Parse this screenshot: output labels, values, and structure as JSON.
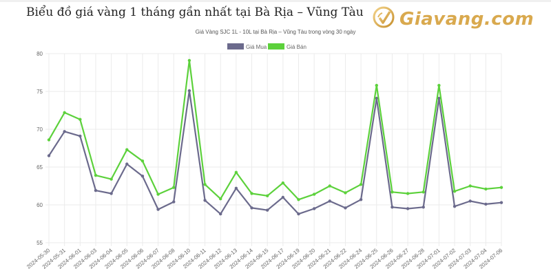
{
  "header": {
    "title": "Biểu đồ giá vàng 1 tháng gần nhất tại Bà Rịa – Vũng Tàu",
    "logo_text": "Giavang.com",
    "logo_icon": "checkmark-circle-icon"
  },
  "colors": {
    "mua": "#6b6a8c",
    "ban": "#5cd13b",
    "logo": "#d9a94e",
    "grid": "#ebebeb"
  },
  "chart_data": {
    "type": "line",
    "title": "Giá Vàng SJC 1L - 10L tại Bà Rịa – Vũng Tàu trong vòng 30 ngày",
    "xlabel": "",
    "ylabel": "",
    "ylim": [
      55,
      80
    ],
    "yticks": [
      55,
      60,
      65,
      70,
      75,
      80
    ],
    "grid": true,
    "legend_position": "top",
    "categories": [
      "2024-05-30",
      "2024-05-31",
      "2024-06-01",
      "2024-06-03",
      "2024-06-04",
      "2024-06-05",
      "2024-06-06",
      "2024-06-07",
      "2024-06-08",
      "2024-06-10",
      "2024-06-11",
      "2024-06-12",
      "2024-06-13",
      "2024-06-14",
      "2024-06-15",
      "2024-06-17",
      "2024-06-19",
      "2024-06-20",
      "2024-06-21",
      "2024-06-22",
      "2024-06-24",
      "2024-06-25",
      "2024-06-26",
      "2024-06-27",
      "2024-06-28",
      "2024-07-01",
      "2024-07-02",
      "2024-07-03",
      "2024-07-04",
      "2024-07-06"
    ],
    "series": [
      {
        "name": "Giá Mua",
        "color": "#6b6a8c",
        "values": [
          66.5,
          69.7,
          69.1,
          61.9,
          61.5,
          65.4,
          63.8,
          59.4,
          60.4,
          75.1,
          60.6,
          58.8,
          62.2,
          59.6,
          59.3,
          61.0,
          58.8,
          59.5,
          60.5,
          59.6,
          60.7,
          74.1,
          59.7,
          59.5,
          59.7,
          74.1,
          59.8,
          60.5,
          60.1,
          60.3
        ]
      },
      {
        "name": "Giá Bán",
        "color": "#5cd13b",
        "values": [
          68.6,
          72.2,
          71.3,
          63.9,
          63.4,
          67.3,
          65.8,
          61.4,
          62.3,
          79.1,
          62.7,
          60.8,
          64.3,
          61.5,
          61.2,
          62.9,
          60.7,
          61.4,
          62.5,
          61.6,
          62.7,
          75.8,
          61.7,
          61.5,
          61.7,
          75.8,
          61.8,
          62.5,
          62.1,
          62.3
        ]
      }
    ]
  }
}
